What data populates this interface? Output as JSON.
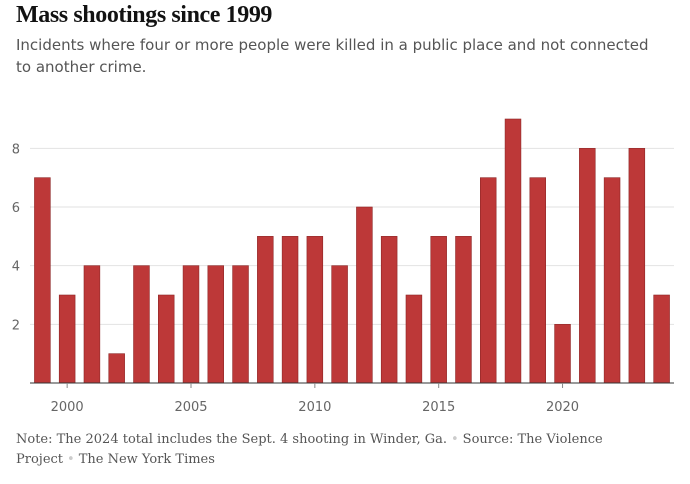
{
  "title": "Mass shootings since 1999",
  "subtitle": "Incidents where four or more people were killed in a public place and not connected to another crime.",
  "footnote": {
    "note": "Note: The 2024 total includes the Sept. 4 shooting in Winder, Ga.",
    "source": "Source: The Violence Project",
    "credit": "The New York Times",
    "separator": "•"
  },
  "colors": {
    "bar": "#bd3838",
    "bar_edge": "#8e2626",
    "grid": "#e2e2e2",
    "text": "#555555"
  },
  "chart_data": {
    "type": "bar",
    "title": "Mass shootings since 1999",
    "xlabel": "",
    "ylabel": "",
    "categories": [
      1999,
      2000,
      2001,
      2002,
      2003,
      2004,
      2005,
      2006,
      2007,
      2008,
      2009,
      2010,
      2011,
      2012,
      2013,
      2014,
      2015,
      2016,
      2017,
      2018,
      2019,
      2020,
      2021,
      2022,
      2023,
      2024
    ],
    "values": [
      7,
      3,
      4,
      1,
      4,
      3,
      4,
      4,
      4,
      5,
      5,
      5,
      4,
      6,
      5,
      3,
      5,
      5,
      7,
      9,
      7,
      2,
      8,
      7,
      8,
      3
    ],
    "ylim": [
      0,
      9
    ],
    "yticks": [
      2,
      4,
      6,
      8
    ],
    "xticks": [
      2000,
      2005,
      2010,
      2015,
      2020
    ],
    "grid": true
  }
}
